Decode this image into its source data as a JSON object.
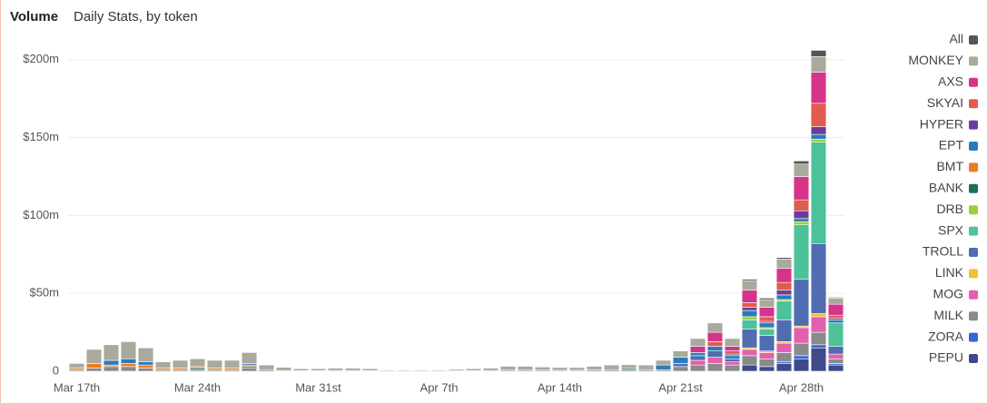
{
  "chart_data": {
    "type": "stacked-bar",
    "title": "Volume",
    "subtitle": "Daily Stats, by token",
    "categories": [
      "Mar 17th",
      null,
      null,
      null,
      null,
      null,
      null,
      "Mar 24th",
      null,
      null,
      null,
      null,
      null,
      null,
      "Mar 31st",
      null,
      null,
      null,
      null,
      null,
      null,
      "Apr 7th",
      null,
      null,
      null,
      null,
      null,
      null,
      "Apr 14th",
      null,
      null,
      null,
      null,
      null,
      null,
      "Apr 21st",
      null,
      null,
      null,
      null,
      null,
      null,
      "Apr 28th",
      null,
      null
    ],
    "ylim": [
      0,
      215
    ],
    "yticks": [
      0,
      {
        "value": 50,
        "label": "$50m"
      },
      {
        "value": 100,
        "label": "$100m"
      },
      {
        "value": 150,
        "label": "$150m"
      },
      {
        "value": 200,
        "label": "$200m"
      }
    ],
    "grid": true,
    "legend": "right",
    "series": [
      {
        "name": "All",
        "color": "#555555",
        "values": [
          0,
          0,
          0,
          0,
          0,
          0,
          0,
          0,
          0,
          0,
          0,
          0,
          0,
          0,
          0,
          0,
          0,
          0,
          0,
          0,
          0,
          0,
          0,
          0,
          0,
          0,
          0,
          0,
          0,
          0,
          0,
          0,
          0,
          0,
          0,
          0,
          0,
          0,
          0,
          1,
          1,
          1,
          2,
          4,
          0.5
        ]
      },
      {
        "name": "MONKEY",
        "color": "#a9aa9b",
        "values": [
          3,
          9,
          10,
          11,
          9,
          4,
          5,
          5,
          5,
          5,
          7,
          3,
          2,
          1.2,
          1.2,
          1.5,
          1.5,
          1.2,
          0.6,
          0.6,
          0.6,
          0.6,
          0.9,
          1.2,
          1.5,
          2.5,
          2.5,
          2,
          1.8,
          1.8,
          2.4,
          3,
          2.4,
          3,
          3,
          4,
          5,
          6,
          5,
          6,
          5,
          6,
          8,
          10,
          4
        ]
      },
      {
        "name": "AXS",
        "color": "#d6338a",
        "values": [
          0,
          0,
          0,
          0,
          0,
          0,
          0,
          0,
          0,
          0,
          0,
          0,
          0,
          0,
          0,
          0,
          0,
          0,
          0,
          0,
          0,
          0,
          0,
          0,
          0,
          0,
          0,
          0,
          0,
          0,
          0,
          0,
          0,
          0,
          0,
          0,
          4,
          6,
          3,
          8,
          6,
          9,
          15,
          20,
          7
        ]
      },
      {
        "name": "SKYAI",
        "color": "#e15b4f",
        "values": [
          0,
          0,
          0,
          0,
          0,
          0,
          0,
          0,
          0,
          0,
          0,
          0,
          0,
          0,
          0,
          0,
          0,
          0,
          0,
          0,
          0,
          0,
          0,
          0,
          0,
          0,
          0,
          0,
          0,
          0,
          0,
          0,
          0,
          0,
          0,
          0,
          0,
          3,
          2,
          3,
          3,
          5,
          7,
          15,
          2
        ]
      },
      {
        "name": "HYPER",
        "color": "#6a3d9a",
        "values": [
          0,
          0,
          0,
          0,
          0,
          0,
          0,
          0,
          0,
          0,
          0,
          0,
          0,
          0,
          0,
          0,
          0,
          0,
          0,
          0,
          0,
          0,
          0,
          0,
          0,
          0,
          0,
          0,
          0,
          0,
          0,
          0,
          0,
          0,
          0,
          0,
          0,
          0,
          1,
          2,
          1,
          3,
          5,
          5,
          1
        ]
      },
      {
        "name": "EPT",
        "color": "#2b7bba",
        "values": [
          0,
          0,
          3,
          3,
          2,
          0,
          0,
          0,
          0,
          0,
          1,
          0,
          0,
          0,
          0,
          0,
          0,
          0,
          0,
          0,
          0,
          0,
          0,
          0,
          0,
          0,
          0,
          0,
          0,
          0,
          0,
          0,
          0,
          0,
          3,
          4,
          2,
          3,
          2,
          4,
          3,
          3,
          2,
          3,
          2
        ]
      },
      {
        "name": "BMT",
        "color": "#e87e1e",
        "values": [
          1,
          3,
          1,
          2,
          2,
          1,
          1,
          1,
          1,
          1,
          1,
          0,
          0,
          0,
          0,
          0,
          0,
          0,
          0,
          0,
          0,
          0,
          0,
          0,
          0,
          0,
          0,
          0,
          0,
          0,
          0,
          0,
          0,
          0,
          0,
          0,
          0,
          0,
          0,
          0,
          0,
          0,
          0,
          0,
          0
        ]
      },
      {
        "name": "BANK",
        "color": "#1f6e5e",
        "values": [
          0,
          0,
          0,
          0,
          0,
          0,
          0,
          1,
          0,
          0,
          1,
          0,
          0,
          0,
          0,
          0,
          0,
          0,
          0,
          0,
          0,
          0,
          0,
          0,
          0,
          0,
          0,
          0,
          0,
          0,
          0,
          0,
          1,
          0,
          0,
          0,
          0,
          0,
          0,
          0,
          0,
          0,
          0,
          0,
          0
        ]
      },
      {
        "name": "DRB",
        "color": "#9ccf3b",
        "values": [
          0,
          0,
          0,
          0,
          0,
          0,
          0,
          0,
          0,
          0,
          0,
          0,
          0,
          0,
          0,
          0,
          0,
          0,
          0,
          0,
          0,
          0,
          0,
          0,
          0,
          0,
          0,
          0,
          0,
          0,
          0,
          0,
          0,
          0,
          0,
          0,
          0,
          0,
          0,
          2,
          1,
          1,
          2,
          2,
          0
        ]
      },
      {
        "name": "SPX",
        "color": "#4cc19a",
        "values": [
          0,
          0,
          0,
          0,
          0,
          0,
          0,
          0,
          0,
          0,
          0,
          0,
          0,
          0,
          0,
          0,
          0,
          0,
          0,
          0,
          0,
          0,
          0,
          0,
          0,
          0,
          0,
          0,
          0,
          0,
          0,
          0,
          0,
          0,
          0,
          0,
          0,
          0,
          0,
          6,
          4,
          12,
          35,
          65,
          15
        ]
      },
      {
        "name": "TROLL",
        "color": "#4f6db0",
        "values": [
          0,
          0,
          0,
          0,
          0,
          0,
          0,
          0,
          0,
          0,
          0,
          0,
          0,
          0,
          0,
          0,
          0,
          0,
          0,
          0,
          0,
          0,
          0,
          0,
          0,
          0,
          0,
          0,
          0,
          0,
          0,
          0,
          0,
          0,
          0,
          2,
          3,
          4,
          2,
          12,
          10,
          14,
          30,
          45,
          5
        ]
      },
      {
        "name": "LINK",
        "color": "#f2c12e",
        "values": [
          0,
          0,
          0,
          0,
          0,
          0,
          0,
          0,
          0,
          0,
          0,
          0,
          0,
          0,
          0,
          0,
          0,
          0,
          0,
          0,
          0,
          0,
          0,
          0,
          0,
          0,
          0,
          0,
          0,
          0,
          0,
          0,
          0,
          0,
          0,
          0,
          0,
          0,
          0,
          1,
          1,
          1,
          1,
          2,
          0
        ]
      },
      {
        "name": "MOG",
        "color": "#e35fb0",
        "values": [
          0,
          0,
          0,
          0,
          0,
          0,
          0,
          0,
          0,
          0,
          0,
          0,
          0,
          0,
          0,
          0,
          0,
          0,
          0,
          0,
          0,
          0,
          0,
          0,
          0,
          0,
          0,
          0,
          0,
          0,
          0,
          0,
          0,
          0,
          0,
          0,
          3,
          4,
          2,
          4,
          4,
          6,
          10,
          10,
          3
        ]
      },
      {
        "name": "MILK",
        "color": "#8a8a8a",
        "values": [
          1,
          2,
          3,
          3,
          2,
          1,
          1,
          1,
          1,
          1,
          2,
          1,
          0.5,
          0.4,
          0.4,
          0.5,
          0.5,
          0.4,
          0.2,
          0.2,
          0.2,
          0.2,
          0.3,
          0.4,
          0.5,
          0.7,
          0.7,
          0.7,
          0.6,
          0.6,
          0.8,
          1,
          0.8,
          1,
          1,
          3,
          4,
          5,
          4,
          6,
          5,
          6,
          8,
          8,
          3
        ]
      },
      {
        "name": "ZORA",
        "color": "#3366dd",
        "values": [
          0,
          0,
          0,
          0,
          0,
          0,
          0,
          0,
          0,
          0,
          0,
          0,
          0,
          0,
          0,
          0,
          0,
          0,
          0,
          0,
          0,
          0,
          0,
          0,
          0,
          0,
          0,
          0,
          0,
          0,
          0,
          0,
          0,
          0,
          0,
          0,
          0,
          0,
          0,
          0,
          0,
          1,
          2,
          2,
          1
        ]
      },
      {
        "name": "PEPU",
        "color": "#3f4a8a",
        "values": [
          0,
          0,
          0,
          0,
          0,
          0,
          0,
          0,
          0,
          0,
          0,
          0,
          0,
          0,
          0,
          0,
          0,
          0,
          0,
          0,
          0,
          0,
          0,
          0,
          0,
          0,
          0,
          0,
          0,
          0,
          0,
          0,
          0,
          0,
          0,
          0,
          0,
          0,
          0,
          4,
          3,
          5,
          8,
          15,
          4
        ]
      }
    ]
  }
}
